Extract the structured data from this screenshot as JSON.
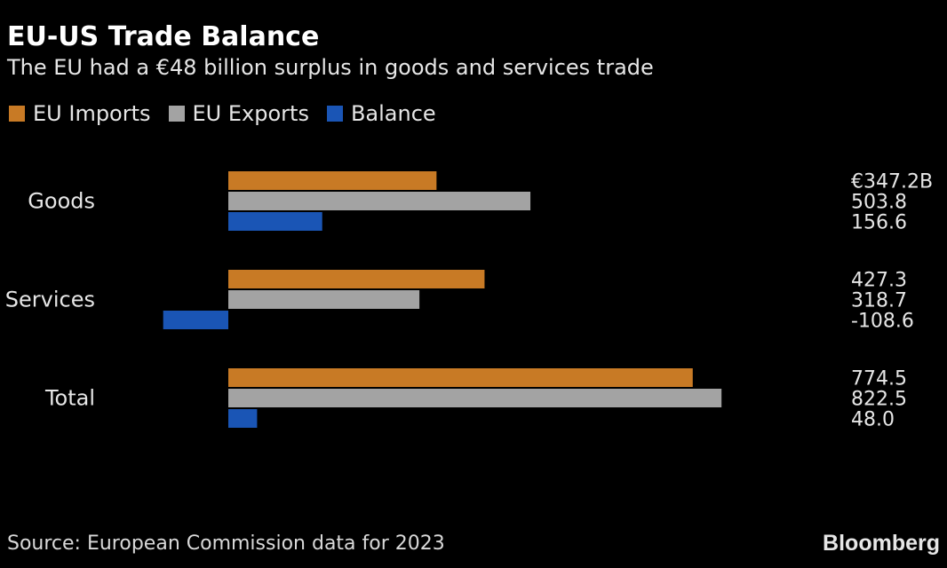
{
  "title": "EU-US Trade Balance",
  "subtitle": "The EU had a €48 billion surplus in goods and services trade",
  "colors": {
    "background": "#000000",
    "imports": "#c87a25",
    "exports": "#a3a3a3",
    "balance": "#1a55b5"
  },
  "chart_data": {
    "type": "bar",
    "orientation": "horizontal",
    "categories": [
      "Goods",
      "Services",
      "Total"
    ],
    "series": [
      {
        "name": "EU Imports",
        "values": [
          347.2,
          427.3,
          774.5
        ],
        "labels": [
          "€347.2B",
          "427.3",
          "774.5"
        ]
      },
      {
        "name": "EU Exports",
        "values": [
          503.8,
          318.7,
          822.5
        ],
        "labels": [
          "503.8",
          "318.7",
          "822.5"
        ]
      },
      {
        "name": "Balance",
        "values": [
          156.6,
          -108.6,
          48.0
        ],
        "labels": [
          "156.6",
          "-108.6",
          "48.0"
        ]
      }
    ],
    "xlim": [
      -108.6,
      822.5
    ],
    "grid": false,
    "legend": "top-left"
  },
  "source": "Source: European Commission data for 2023",
  "brand": "Bloomberg"
}
